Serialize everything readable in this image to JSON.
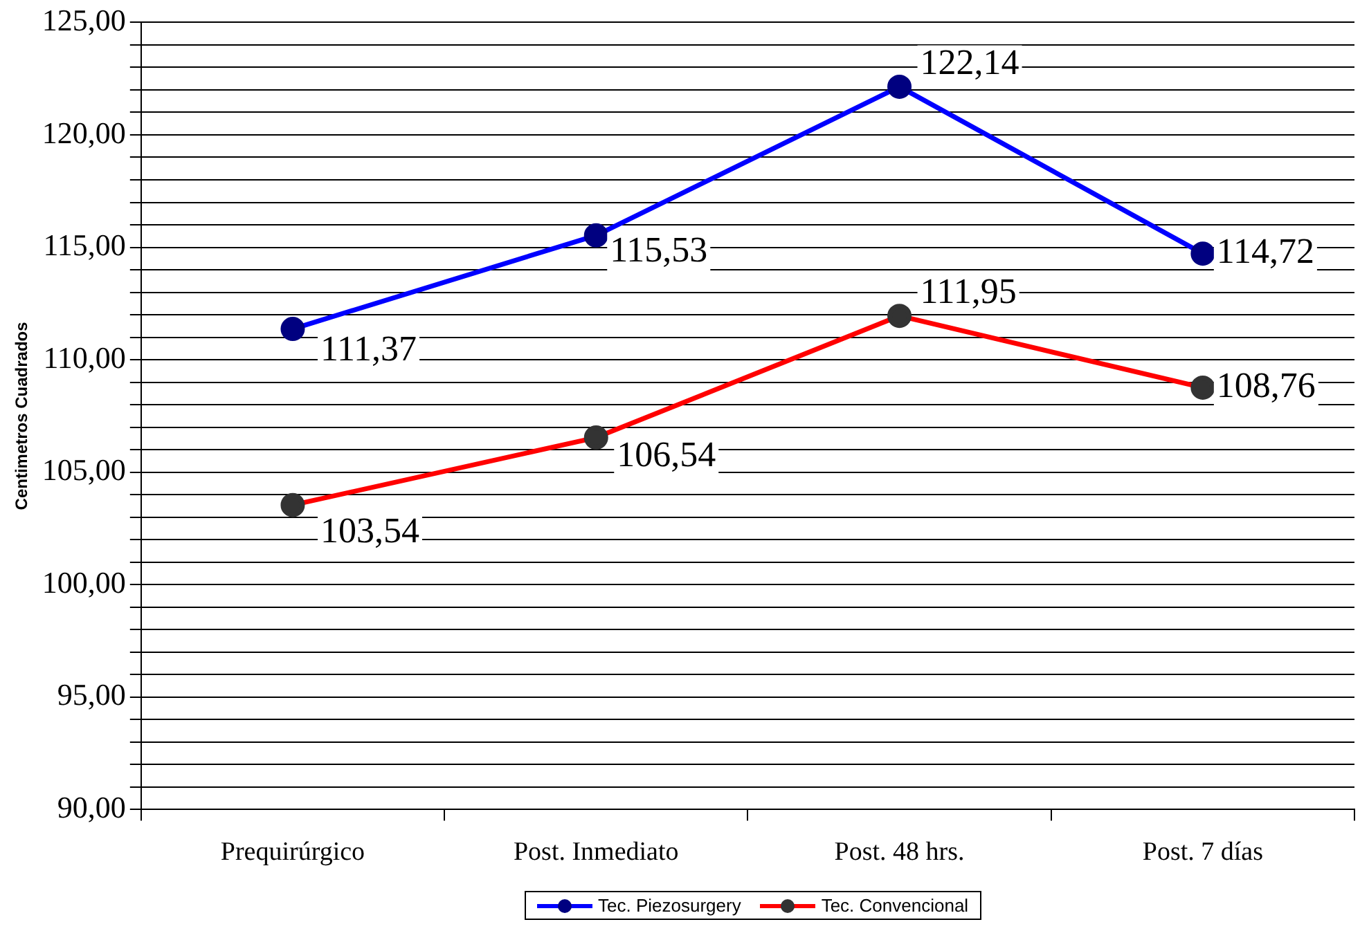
{
  "chart_data": {
    "type": "line",
    "ylabel": "Centimetros Cuadrados",
    "categories": [
      "Prequirúrgico",
      "Post. Inmediato",
      "Post. 48 hrs.",
      "Post. 7 días"
    ],
    "series": [
      {
        "name": "Tec. Piezosurgery",
        "color": "#0000ff",
        "values": [
          111.37,
          115.53,
          122.14,
          114.72
        ],
        "value_labels": [
          "111,37",
          "115,53",
          "122,14",
          "114,72"
        ]
      },
      {
        "name": "Tec. Convencional",
        "color": "#ff0000",
        "values": [
          103.54,
          106.54,
          111.95,
          108.76
        ],
        "value_labels": [
          "103,54",
          "106,54",
          "111,95",
          "108,76"
        ]
      }
    ],
    "ylim": [
      90,
      125
    ],
    "yticks": [
      {
        "value": 90,
        "label": "90,00"
      },
      {
        "value": 91,
        "label": null
      },
      {
        "value": 92,
        "label": null
      },
      {
        "value": 93,
        "label": null
      },
      {
        "value": 94,
        "label": null
      },
      {
        "value": 95,
        "label": "95,00"
      },
      {
        "value": 96,
        "label": null
      },
      {
        "value": 97,
        "label": null
      },
      {
        "value": 98,
        "label": null
      },
      {
        "value": 99,
        "label": null
      },
      {
        "value": 100,
        "label": "100,00"
      },
      {
        "value": 101,
        "label": null
      },
      {
        "value": 102,
        "label": null
      },
      {
        "value": 103,
        "label": null
      },
      {
        "value": 104,
        "label": null
      },
      {
        "value": 105,
        "label": "105,00"
      },
      {
        "value": 106,
        "label": null
      },
      {
        "value": 107,
        "label": null
      },
      {
        "value": 108,
        "label": null
      },
      {
        "value": 109,
        "label": null
      },
      {
        "value": 110,
        "label": "110,00"
      },
      {
        "value": 111,
        "label": null
      },
      {
        "value": 112,
        "label": null
      },
      {
        "value": 113,
        "label": null
      },
      {
        "value": 114,
        "label": null
      },
      {
        "value": 115,
        "label": "115,00"
      },
      {
        "value": 116,
        "label": null
      },
      {
        "value": 117,
        "label": null
      },
      {
        "value": 118,
        "label": null
      },
      {
        "value": 119,
        "label": null
      },
      {
        "value": 120,
        "label": "120,00"
      },
      {
        "value": 121,
        "label": null
      },
      {
        "value": 122,
        "label": null
      },
      {
        "value": 123,
        "label": null
      },
      {
        "value": 124,
        "label": null
      },
      {
        "value": 125,
        "label": "125,00"
      }
    ],
    "grid": "y",
    "legend": "bottom",
    "marker": "circle",
    "line_style": "solid"
  }
}
